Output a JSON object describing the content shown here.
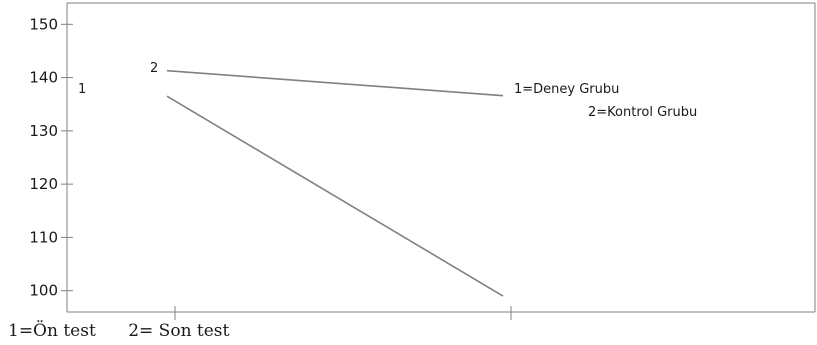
{
  "chart_data": {
    "type": "line",
    "title": "",
    "xlabel": "",
    "ylabel": "",
    "ylim": [
      96,
      154
    ],
    "yticks": [
      100,
      110,
      120,
      130,
      140,
      150
    ],
    "categories": [
      "1",
      "2"
    ],
    "category_legend": "1=Ön test      2= Son test",
    "series": [
      {
        "name": "1",
        "values": [
          136.5,
          99.0
        ],
        "color": "#808080"
      },
      {
        "name": "2",
        "values": [
          141.3,
          136.6
        ],
        "color": "#808080"
      }
    ],
    "legend": {
      "placement": "top-right",
      "entries": [
        "1=Deney Grubu",
        "2=Kontrol Grubu"
      ]
    },
    "grid": false
  }
}
